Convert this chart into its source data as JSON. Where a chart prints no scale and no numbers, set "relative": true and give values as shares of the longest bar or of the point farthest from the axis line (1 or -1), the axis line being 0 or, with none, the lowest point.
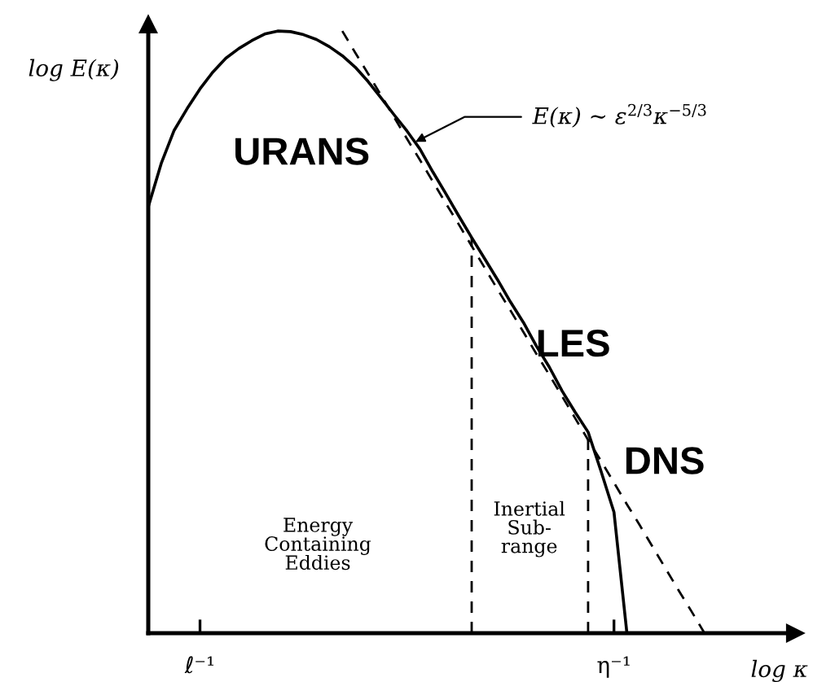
{
  "chart_data": {
    "type": "line",
    "relative": true,
    "xlabel": "log κ",
    "ylabel": "log E(κ)",
    "tick_labels": "x",
    "grid": false,
    "categories": [
      null,
      null,
      null,
      null,
      "ℓ⁻¹",
      null,
      null,
      null,
      null,
      null,
      null,
      null,
      null,
      null,
      null,
      null,
      null,
      null,
      null,
      null,
      null,
      null,
      null,
      null,
      null,
      null,
      null,
      null,
      null,
      null,
      null,
      null,
      null,
      null,
      null,
      null,
      "η⁻¹",
      null,
      null,
      null,
      null,
      null,
      null,
      null,
      null,
      null,
      null,
      null,
      null,
      null,
      null
    ],
    "series": [
      {
        "color": "#000000",
        "line_style": "solid",
        "values": [
          0.708,
          0.78,
          0.835,
          0.871,
          0.904,
          0.932,
          0.955,
          0.971,
          0.984,
          0.995,
          1.0,
          0.999,
          0.994,
          0.986,
          0.974,
          0.959,
          0.94,
          0.916,
          0.889,
          0.861,
          0.834,
          0.804,
          0.766,
          0.73,
          0.693,
          0.657,
          0.622,
          0.587,
          0.55,
          0.516,
          0.477,
          0.442,
          0.402,
          0.367,
          0.334,
          0.269,
          0.201,
          0,
          null,
          null,
          null,
          null,
          null,
          null,
          null,
          null,
          null,
          null,
          null,
          null,
          null
        ]
      },
      {
        "color": "#000000",
        "line_style": "dashed",
        "values": [
          null,
          null,
          null,
          null,
          null,
          null,
          null,
          null,
          null,
          null,
          null,
          null,
          null,
          null,
          null,
          1.0,
          0.964,
          0.929,
          0.893,
          0.857,
          0.821,
          0.786,
          0.75,
          0.714,
          0.679,
          0.643,
          0.607,
          0.571,
          0.536,
          0.5,
          0.464,
          0.429,
          0.393,
          0.357,
          0.321,
          0.286,
          0.25,
          0.214,
          0.179,
          0.143,
          0.107,
          0.071,
          0.036,
          0,
          null,
          null,
          null,
          null,
          null,
          null,
          null
        ]
      }
    ],
    "annotations": [
      "E(κ) ~ ε$^{2/3}$κ$^{−5/3}$",
      "URANS",
      "LES",
      "DNS",
      "Energy\nContaining\nEddies",
      "Inertial\nSub-\nrange"
    ]
  }
}
